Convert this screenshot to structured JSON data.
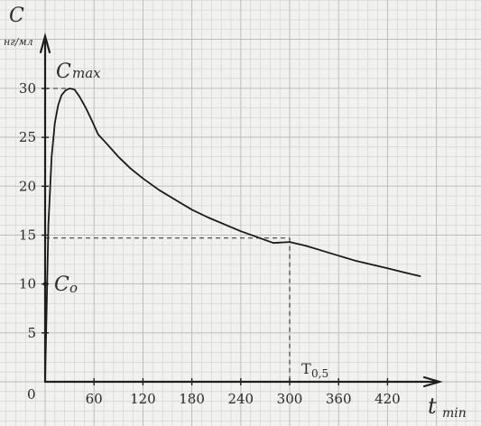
{
  "chart_data": {
    "type": "line",
    "ylabel": "C",
    "yunit": "нг/мл",
    "xlabel": "t",
    "xunit": "min",
    "origin_label": "0",
    "x_ticks": [
      60,
      120,
      180,
      240,
      300,
      360,
      420
    ],
    "y_ticks": [
      5,
      10,
      15,
      20,
      25,
      30
    ],
    "xlim": [
      0,
      470
    ],
    "ylim": [
      0,
      34
    ],
    "grid": true,
    "series": [
      {
        "x": [
          0,
          2,
          4,
          8,
          12,
          16,
          20,
          25,
          30,
          36,
          42,
          50,
          58,
          65,
          75,
          90,
          105,
          120,
          140,
          160,
          180,
          200,
          220,
          240,
          260,
          280,
          300,
          320,
          340,
          360,
          380,
          400,
          420,
          440,
          460
        ],
        "y": [
          0,
          8,
          16,
          23,
          26.5,
          28.3,
          29.3,
          29.8,
          30,
          29.9,
          29.2,
          28,
          26.6,
          25.3,
          24.4,
          23,
          21.8,
          20.8,
          19.6,
          18.6,
          17.6,
          16.8,
          16.1,
          15.4,
          14.8,
          14.2,
          14.3,
          13.9,
          13.4,
          12.9,
          12.4,
          12,
          11.6,
          11.2,
          10.8
        ]
      }
    ],
    "annotations": {
      "cmax": {
        "label_main": "C",
        "label_sub": "max",
        "x": 30,
        "y": 30
      },
      "c0": {
        "label_main": "C",
        "label_sub": "o",
        "x": 0,
        "y": 10
      },
      "half": {
        "label_main": "T",
        "label_sub": "0,5",
        "x": 300,
        "y": 14.7
      }
    }
  }
}
